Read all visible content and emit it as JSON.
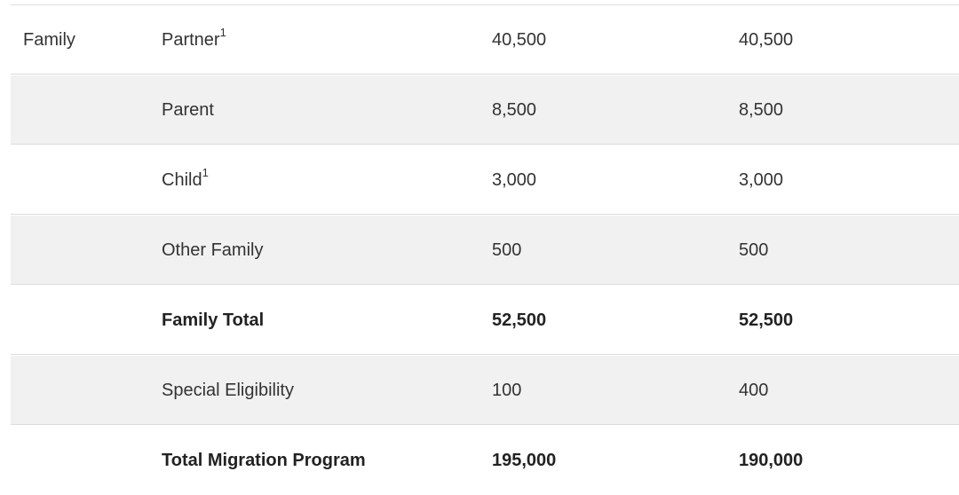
{
  "table": {
    "rows": [
      {
        "category": "Family",
        "type": "Partner",
        "note": "1",
        "val1": "40,500",
        "val2": "40,500"
      },
      {
        "category": "",
        "type": "Parent",
        "note": "",
        "val1": "8,500",
        "val2": "8,500"
      },
      {
        "category": "",
        "type": "Child",
        "note": "1",
        "val1": "3,000",
        "val2": "3,000"
      },
      {
        "category": "",
        "type": "Other Family",
        "note": "",
        "val1": "500",
        "val2": "500"
      },
      {
        "category": "",
        "type": "Family Total",
        "note": "",
        "val1": "52,500",
        "val2": "52,500"
      },
      {
        "category": "",
        "type": "Special Eligibility",
        "note": "",
        "val1": "100",
        "val2": "400"
      },
      {
        "category": "",
        "type": "Total Migration Program",
        "note": "",
        "val1": "195,000",
        "val2": "190,000"
      }
    ]
  }
}
